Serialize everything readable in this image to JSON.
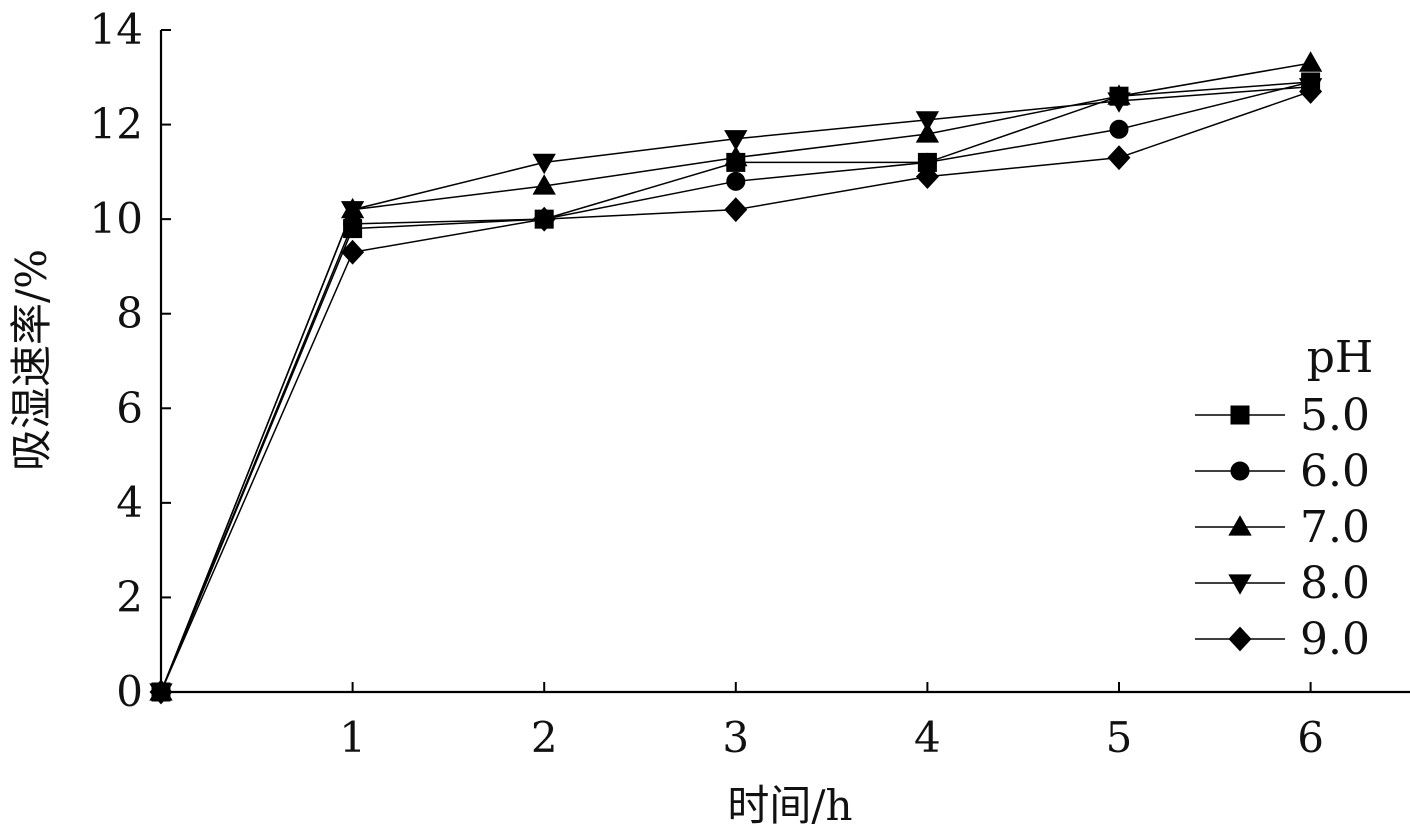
{
  "chart_data": {
    "type": "line",
    "xlabel": "时间/h",
    "ylabel": "吸湿速率/%",
    "xlim": [
      0,
      6
    ],
    "ylim": [
      0,
      14
    ],
    "x_ticks": [
      1,
      2,
      3,
      4,
      5,
      6
    ],
    "y_ticks": [
      0,
      2,
      4,
      6,
      8,
      10,
      12,
      14
    ],
    "grid": false,
    "legend": {
      "title": "pH",
      "placement": "right"
    },
    "x": [
      0,
      1,
      2,
      3,
      4,
      5,
      6
    ],
    "series": [
      {
        "name": "5.0",
        "marker": "square",
        "values": [
          0,
          9.8,
          10.0,
          11.2,
          11.2,
          12.6,
          12.9
        ]
      },
      {
        "name": "6.0",
        "marker": "circle",
        "values": [
          0,
          9.9,
          10.0,
          10.8,
          11.2,
          11.9,
          12.9
        ]
      },
      {
        "name": "7.0",
        "marker": "triangle-up",
        "values": [
          0,
          10.2,
          10.7,
          11.3,
          11.8,
          12.6,
          13.3
        ]
      },
      {
        "name": "8.0",
        "marker": "triangle-down",
        "values": [
          0,
          10.2,
          11.2,
          11.7,
          12.1,
          12.5,
          12.8
        ]
      },
      {
        "name": "9.0",
        "marker": "diamond",
        "values": [
          0,
          9.3,
          10.0,
          10.2,
          10.9,
          11.3,
          12.7
        ]
      }
    ]
  }
}
